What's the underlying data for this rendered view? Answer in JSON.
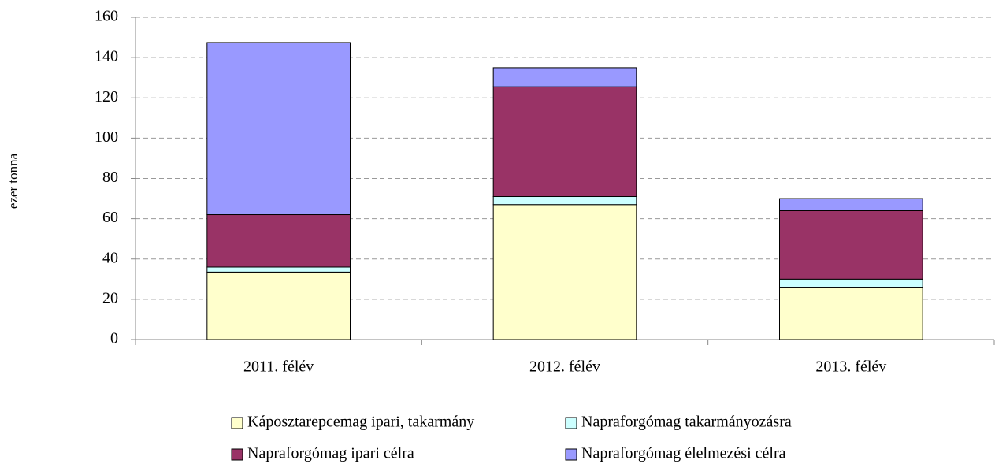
{
  "chart_data": {
    "type": "stacked_bar",
    "y_label": "ezer tonna",
    "categories": [
      "2011. félév",
      "2012. félév",
      "2013. félév"
    ],
    "series": [
      {
        "name": "Káposztarepcemag ipari, takarmány",
        "color": "#ffffcc",
        "values": [
          33.5,
          67,
          26
        ]
      },
      {
        "name": "Napraforgómag takarmányozásra",
        "color": "#ccffff",
        "values": [
          2.5,
          4,
          4
        ]
      },
      {
        "name": "Napraforgómag ipari célra",
        "color": "#993366",
        "values": [
          26,
          54.5,
          34
        ]
      },
      {
        "name": "Napraforgómag élelmezési célra",
        "color": "#9999ff",
        "values": [
          85.5,
          9.5,
          6
        ]
      }
    ],
    "ylim": [
      0,
      160
    ],
    "yticks": [
      0,
      20,
      40,
      60,
      80,
      100,
      120,
      140,
      160
    ],
    "grid": true,
    "legend": "bottom"
  }
}
